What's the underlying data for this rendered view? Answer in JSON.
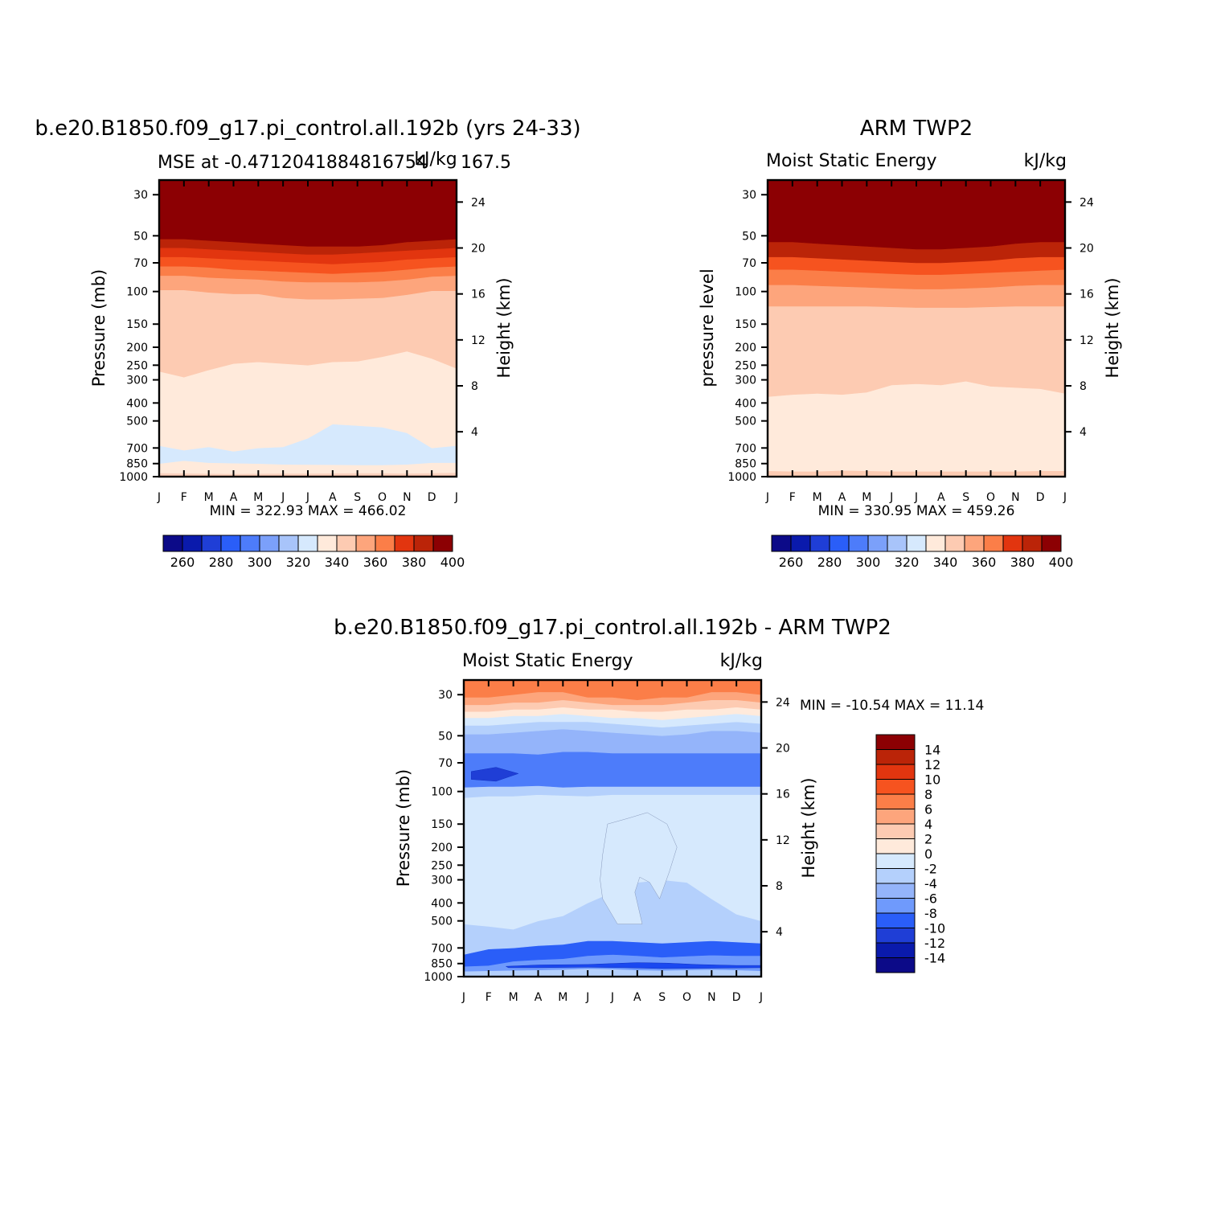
{
  "chart_data": [
    {
      "type": "heatmap",
      "title": "b.e20.B1850.f09_g17.pi_control.all.192b (yrs 24-33)",
      "subtitle_left": "MSE at -0.4712041884816754",
      "subtitle_center": "kJ/kg",
      "subtitle_right": "167.5",
      "ylabel": "Pressure (mb)",
      "y2label": "Height (km)",
      "x_ticks": [
        "J",
        "F",
        "M",
        "A",
        "M",
        "J",
        "J",
        "A",
        "S",
        "O",
        "N",
        "D",
        "J"
      ],
      "y_ticks": [
        "30",
        "50",
        "70",
        "100",
        "150",
        "200",
        "250",
        "300",
        "400",
        "500",
        "700",
        "850",
        "1000"
      ],
      "y2_ticks": [
        "24",
        "20",
        "16",
        "12",
        "8",
        "4"
      ],
      "min_text": "322.93",
      "max_text": "466.02",
      "colorbar_labels": [
        "260",
        "280",
        "300",
        "320",
        "340",
        "360",
        "380",
        "400"
      ],
      "band_boundaries_hPa": [
        [
          1000,
          1000,
          1000,
          1000,
          1000,
          1000,
          1000,
          1000,
          1000,
          1000,
          1000,
          1000,
          1000
        ],
        [
          985,
          985,
          985,
          985,
          985,
          985,
          985,
          985,
          985,
          985,
          985,
          985,
          985
        ],
        [
          955,
          958,
          962,
          965,
          962,
          960,
          960,
          958,
          956,
          956,
          960,
          955,
          950
        ],
        [
          850,
          820,
          840,
          845,
          850,
          858,
          860,
          862,
          865,
          865,
          858,
          840,
          840
        ],
        [
          680,
          720,
          690,
          730,
          700,
          690,
          620,
          520,
          530,
          540,
          580,
          700,
          680
        ],
        [
          270,
          290,
          265,
          245,
          240,
          245,
          250,
          240,
          238,
          225,
          210,
          230,
          260
        ],
        [
          98,
          98,
          101,
          103,
          103,
          108,
          110,
          110,
          109,
          108,
          104,
          99,
          99
        ],
        [
          82,
          82,
          84,
          85,
          86,
          88,
          89,
          89,
          89,
          88,
          86,
          83,
          82
        ],
        [
          73,
          73,
          74,
          76,
          77,
          78,
          79,
          80,
          79,
          78,
          76,
          74,
          73
        ],
        [
          65,
          65,
          66,
          67,
          68,
          69,
          70,
          71,
          70,
          69,
          67,
          66,
          65
        ],
        [
          58,
          58,
          59,
          60,
          61,
          62,
          63,
          63,
          62,
          61,
          60,
          59,
          58
        ],
        [
          52,
          52,
          53,
          54,
          55,
          56,
          57,
          57,
          57,
          56,
          54,
          53,
          52
        ],
        [
          25,
          25,
          25,
          25,
          25,
          25,
          25,
          25,
          25,
          25,
          25,
          25,
          25
        ]
      ],
      "band_colors": [
        "#fa9b76",
        "#fbd2bf",
        "#ffeadb",
        "#d6e9fd",
        "#ffeadb",
        "#fdcbb2",
        "#fda57c",
        "#fb7e48",
        "#f6531f",
        "#e2350f",
        "#bb2408",
        "#8c0003"
      ]
    },
    {
      "type": "heatmap",
      "title": "ARM TWP2",
      "subtitle_left": "Moist Static Energy",
      "subtitle_right": "kJ/kg",
      "ylabel": "pressure level",
      "y2label": "Height (km)",
      "x_ticks": [
        "J",
        "F",
        "M",
        "A",
        "M",
        "J",
        "J",
        "A",
        "S",
        "O",
        "N",
        "D",
        "J"
      ],
      "y_ticks": [
        "30",
        "50",
        "70",
        "100",
        "150",
        "200",
        "250",
        "300",
        "400",
        "500",
        "700",
        "850",
        "1000"
      ],
      "y2_ticks": [
        "24",
        "20",
        "16",
        "12",
        "8",
        "4"
      ],
      "min_text": "330.95",
      "max_text": "459.26",
      "colorbar_labels": [
        "260",
        "280",
        "300",
        "320",
        "340",
        "360",
        "380",
        "400"
      ],
      "band_boundaries_hPa": [
        [
          1000,
          1000,
          1000,
          1000,
          1000,
          1000,
          1000,
          1000,
          1000,
          1000,
          1000,
          1000,
          1000
        ],
        [
          930,
          935,
          935,
          925,
          930,
          935,
          935,
          935,
          935,
          935,
          935,
          930,
          930
        ],
        [
          370,
          360,
          355,
          360,
          350,
          320,
          315,
          320,
          305,
          325,
          330,
          335,
          355
        ],
        [
          120,
          120,
          120,
          120,
          120,
          121,
          122,
          122,
          122,
          121,
          120,
          120,
          120
        ],
        [
          92,
          92,
          93,
          94,
          95,
          96,
          97,
          97,
          96,
          95,
          93,
          92,
          92
        ],
        [
          76,
          76,
          77,
          78,
          79,
          80,
          81,
          81,
          80,
          79,
          78,
          77,
          76
        ],
        [
          65,
          65,
          66,
          67,
          68,
          69,
          70,
          70,
          69,
          68,
          66,
          65,
          65
        ],
        [
          54,
          54,
          55,
          56,
          57,
          58,
          59,
          59,
          58,
          57,
          55,
          54,
          54
        ],
        [
          25,
          25,
          25,
          25,
          25,
          25,
          25,
          25,
          25,
          25,
          25,
          25,
          25
        ]
      ],
      "band_colors": [
        "#fdcbb2",
        "#ffeadb",
        "#fdcbb2",
        "#fda57c",
        "#fb7e48",
        "#f6531f",
        "#bb2408",
        "#8c0003"
      ]
    },
    {
      "type": "heatmap",
      "title": "b.e20.B1850.f09_g17.pi_control.all.192b - ARM TWP2",
      "subtitle_left": "Moist Static Energy",
      "subtitle_right": "kJ/kg",
      "ylabel": "Pressure (mb)",
      "y2label": "Height (km)",
      "x_ticks": [
        "J",
        "F",
        "M",
        "A",
        "M",
        "J",
        "J",
        "A",
        "S",
        "O",
        "N",
        "D",
        "J"
      ],
      "y_ticks": [
        "30",
        "50",
        "70",
        "100",
        "150",
        "200",
        "250",
        "300",
        "400",
        "500",
        "700",
        "850",
        "1000"
      ],
      "y2_ticks": [
        "24",
        "20",
        "16",
        "12",
        "8",
        "4"
      ],
      "min_text": "-10.54",
      "max_text": "11.14",
      "colorbar_labels": [
        "14",
        "12",
        "10",
        "8",
        "6",
        "4",
        "2",
        "0",
        "-2",
        "-4",
        "-6",
        "-8",
        "-10",
        "-12",
        "-14"
      ],
      "band_boundaries_hPa": [
        [
          1000,
          1000,
          1000,
          1000,
          1000,
          1000,
          1000,
          1000,
          1000,
          1000,
          1000,
          1000,
          1000
        ],
        [
          985,
          985,
          985,
          985,
          985,
          985,
          985,
          985,
          985,
          985,
          985,
          985,
          985
        ],
        [
          935,
          930,
          925,
          920,
          915,
          905,
          910,
          920,
          925,
          920,
          915,
          920,
          930
        ],
        [
          880,
          870,
          825,
          810,
          800,
          770,
          760,
          770,
          785,
          775,
          765,
          770,
          770
        ],
        [
          760,
          710,
          700,
          680,
          670,
          640,
          640,
          650,
          660,
          650,
          640,
          650,
          660
        ],
        [
          520,
          535,
          555,
          500,
          470,
          400,
          350,
          310,
          300,
          310,
          380,
          460,
          500
        ],
        [
          108,
          106,
          106,
          104,
          105,
          106,
          104,
          104,
          104,
          104,
          104,
          104,
          104
        ],
        [
          95,
          94,
          94,
          93,
          95,
          94,
          94,
          94,
          94,
          94,
          94,
          94,
          94
        ],
        [
          62,
          62,
          62,
          63,
          61,
          61,
          62,
          62,
          62,
          62,
          62,
          62,
          62
        ],
        [
          49,
          49,
          48,
          47,
          46,
          47,
          48,
          49,
          50,
          49,
          47,
          47,
          48
        ],
        [
          44,
          44,
          43,
          42,
          42,
          42,
          43,
          44,
          45,
          44,
          43,
          42,
          43
        ],
        [
          40,
          40,
          39,
          39,
          38,
          39,
          40,
          40,
          41,
          40,
          39,
          38,
          39
        ],
        [
          37,
          37,
          36,
          36,
          35,
          36,
          36,
          37,
          37,
          36,
          36,
          35,
          36
        ],
        [
          34,
          34,
          33,
          33,
          32,
          33,
          34,
          34,
          34,
          33,
          32,
          32,
          33
        ],
        [
          31,
          31,
          30,
          29,
          29,
          31,
          31,
          32,
          31,
          31,
          29,
          29,
          30
        ],
        [
          25,
          25,
          25,
          25,
          25,
          25,
          25,
          25,
          25,
          25,
          25,
          25,
          25
        ]
      ],
      "band_colors": [
        "#d6e9fd",
        "#b4d0fc",
        "#6f9afc",
        "#2a5ef8",
        "#b4d0fc",
        "#d6e9fd",
        "#b4d0fc",
        "#4d7cfa",
        "#94b4fa",
        "#b4d0fc",
        "#d6e9fd",
        "#ffeadb",
        "#fdcbb2",
        "#fda57c",
        "#fb7e48"
      ],
      "annotations": [
        {
          "region": "JJA light column",
          "color": "#d6e9fd",
          "top_hPa": 140,
          "bottom_hPa": 520
        },
        {
          "region": "low-level minimum",
          "color": "#1a48f0",
          "top_hPa": 830,
          "bottom_hPa": 900
        }
      ]
    }
  ],
  "texts": {
    "min_prefix": "MIN = ",
    "max_prefix": "MAX = "
  },
  "colorbar_colors": [
    "#0c0a88",
    "#0a1aac",
    "#1f3ed6",
    "#2a5ef8",
    "#4d7cfa",
    "#7ba0fa",
    "#a8c4fa",
    "#d6e9fd",
    "#ffeadb",
    "#fdcbb2",
    "#fda57c",
    "#fb7e48",
    "#e2350f",
    "#bb2408",
    "#8c0003"
  ],
  "colorbar_diff_colors": [
    "#8c0003",
    "#bb2408",
    "#e2350f",
    "#f6531f",
    "#fb7e48",
    "#fda57c",
    "#fdcbb2",
    "#ffeadb",
    "#d6e9fd",
    "#b4d0fc",
    "#94b4fa",
    "#6f9afc",
    "#2a5ef8",
    "#1f3ed6",
    "#0a1aac",
    "#0c0a88"
  ]
}
